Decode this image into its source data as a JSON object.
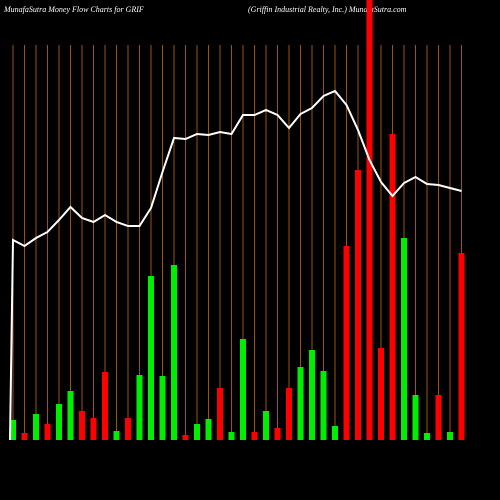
{
  "chart_data": {
    "type": "bar",
    "title": "MunafaSutra  Money Flow  Charts for GRIF",
    "subtitle": "(Griffin  Industrial Realty,  Inc.) MunafaSutra.com",
    "ylim": [
      0,
      430
    ],
    "series": [
      {
        "kind": "bar",
        "values": [
          20,
          7,
          26,
          16,
          36,
          49,
          29,
          22,
          68,
          9,
          22,
          65,
          164,
          64,
          175,
          5,
          16,
          21,
          52,
          8,
          101,
          8,
          29,
          12,
          52,
          73,
          90,
          69,
          14,
          194,
          270,
          440,
          92,
          306,
          202,
          45,
          7,
          45,
          8,
          187
        ],
        "colors": [
          "#00ee00",
          "#ff0000",
          "#00ee00",
          "#ff0000",
          "#00ee00",
          "#00ee00",
          "#ff0000",
          "#ff0000",
          "#ff0000",
          "#00ee00",
          "#ff0000",
          "#00ee00",
          "#00ee00",
          "#00ee00",
          "#00ee00",
          "#ff0000",
          "#00ee00",
          "#00ee00",
          "#ff0000",
          "#00ee00",
          "#00ee00",
          "#ff0000",
          "#00ee00",
          "#ff0000",
          "#ff0000",
          "#00ee00",
          "#00ee00",
          "#00ee00",
          "#00ee00",
          "#ff0000",
          "#ff0000",
          "#ff0000",
          "#ff0000",
          "#ff0000",
          "#00ee00",
          "#00ee00",
          "#00ee00",
          "#ff0000",
          "#00ee00",
          "#ff0000"
        ]
      },
      {
        "kind": "line",
        "color": "#ffffff",
        "values": [
          200,
          194,
          202,
          208,
          220,
          233,
          222,
          218,
          225,
          218,
          214,
          214,
          232,
          268,
          302,
          301,
          306,
          305,
          308,
          306,
          325,
          325,
          330,
          325,
          312,
          326,
          332,
          344,
          349,
          335,
          310,
          280,
          258,
          244,
          257,
          263,
          256,
          255,
          252,
          249
        ]
      }
    ],
    "gridline_color": "#a0520a"
  }
}
